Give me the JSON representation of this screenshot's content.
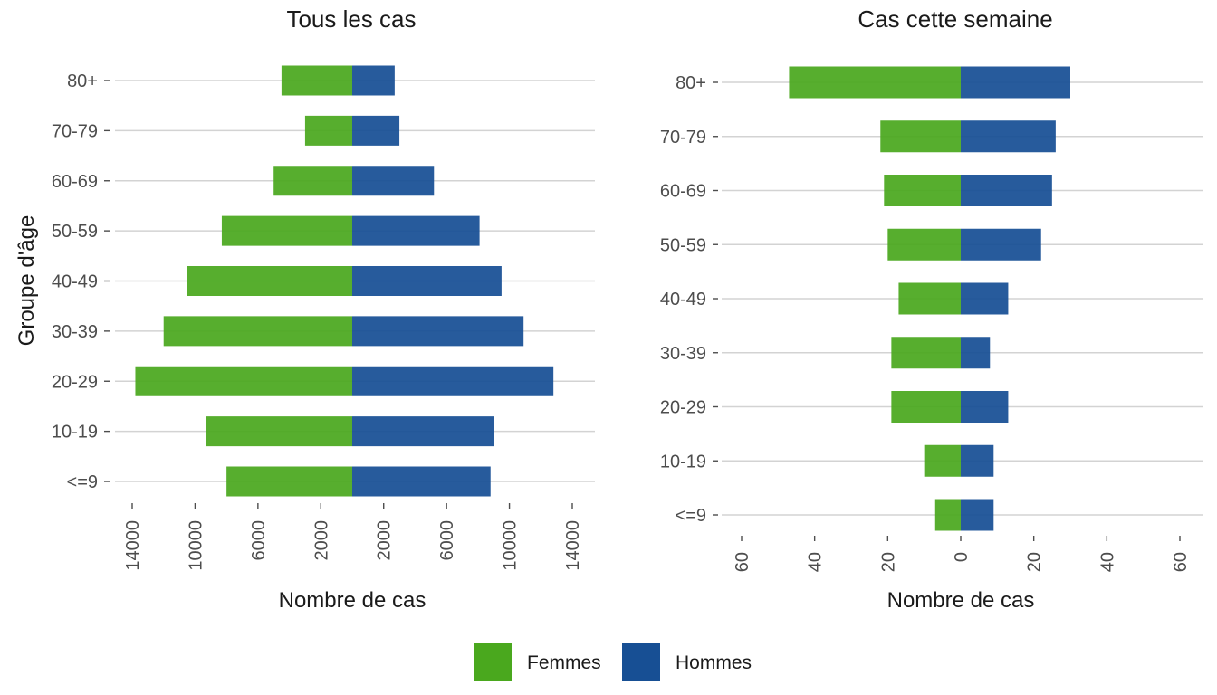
{
  "chart_data": [
    {
      "type": "bar",
      "orientation": "horizontal-diverging",
      "title": "Tous les cas",
      "xlabel": "Nombre de cas",
      "ylabel": "Groupe d'âge",
      "categories": [
        "<=9",
        "10-19",
        "20-29",
        "30-39",
        "40-49",
        "50-59",
        "60-69",
        "70-79",
        "80+"
      ],
      "series": [
        {
          "name": "Femmes",
          "values": [
            8000,
            9300,
            13800,
            12000,
            10500,
            8300,
            5000,
            3000,
            4500
          ]
        },
        {
          "name": "Hommes",
          "values": [
            8800,
            9000,
            12800,
            10900,
            9500,
            8100,
            5200,
            3000,
            2700
          ]
        }
      ],
      "xlim": [
        -16000,
        16000
      ],
      "xticks": [
        -14000,
        -10000,
        -6000,
        -2000,
        2000,
        6000,
        10000,
        14000
      ],
      "xtick_labels": [
        "14000",
        "10000",
        "6000",
        "2000",
        "2000",
        "6000",
        "10000",
        "14000"
      ],
      "grid": "horizontal"
    },
    {
      "type": "bar",
      "orientation": "horizontal-diverging",
      "title": "Cas cette semaine",
      "xlabel": "Nombre de cas",
      "ylabel": "",
      "categories": [
        "<=9",
        "10-19",
        "20-29",
        "30-39",
        "40-49",
        "50-59",
        "60-69",
        "70-79",
        "80+"
      ],
      "series": [
        {
          "name": "Femmes",
          "values": [
            7,
            10,
            19,
            19,
            17,
            20,
            21,
            22,
            47
          ]
        },
        {
          "name": "Hommes",
          "values": [
            9,
            9,
            13,
            8,
            13,
            22,
            25,
            26,
            30
          ]
        }
      ],
      "xlim": [
        -67,
        67
      ],
      "xticks": [
        -60,
        -40,
        -20,
        0,
        20,
        40,
        60
      ],
      "xtick_labels": [
        "60",
        "40",
        "20",
        "0",
        "20",
        "40",
        "60"
      ],
      "grid": "horizontal"
    }
  ],
  "legend": {
    "position": "bottom",
    "items": [
      {
        "label": "Femmes",
        "color": "#4aa81e"
      },
      {
        "label": "Hommes",
        "color": "#174f94"
      }
    ]
  },
  "colors": {
    "femmes": "#4aa81e",
    "hommes": "#174f94"
  }
}
